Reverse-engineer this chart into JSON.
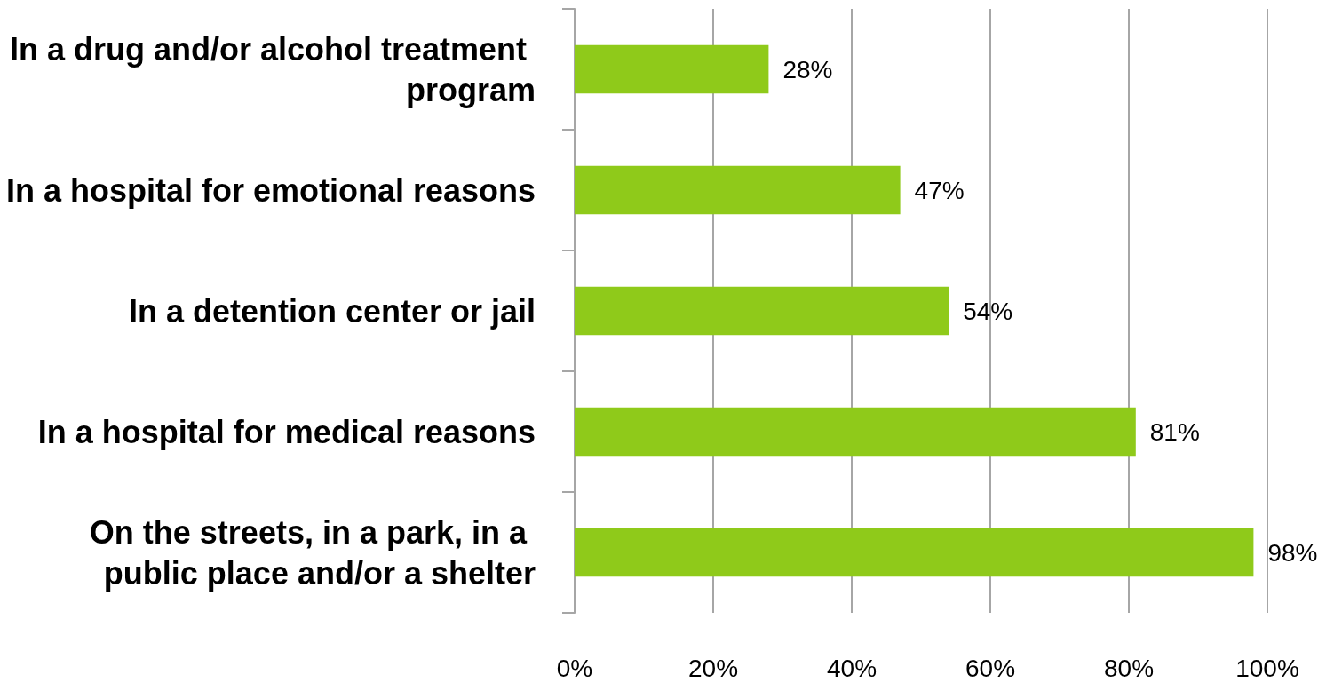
{
  "chart_data": {
    "type": "bar",
    "orientation": "horizontal",
    "categories": [
      "In a drug and/or alcohol treatment program",
      "In a hospital for emotional reasons",
      "In a detention center or jail",
      "In a hospital for medical reasons",
      "On the streets, in a park, in a public place and/or a shelter"
    ],
    "values": [
      28,
      47,
      54,
      81,
      98
    ],
    "value_labels": [
      "28%",
      "47%",
      "54%",
      "81%",
      "98%"
    ],
    "color": "#8fca1a",
    "xlim": [
      0,
      100
    ],
    "xticks": [
      {
        "value": 0,
        "label": "0%"
      },
      {
        "value": 20,
        "label": "20%"
      },
      {
        "value": 40,
        "label": "40%"
      },
      {
        "value": 60,
        "label": "60%"
      },
      {
        "value": 80,
        "label": "80%"
      },
      {
        "value": 100,
        "label": "100%"
      }
    ],
    "grid": "x"
  }
}
